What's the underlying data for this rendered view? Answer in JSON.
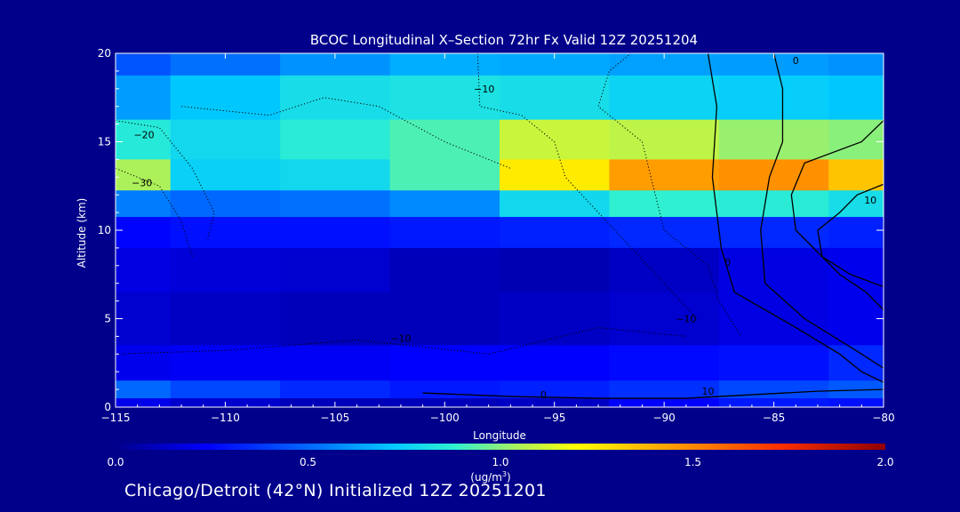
{
  "chart_data": {
    "type": "heatmap",
    "title": "BCOC Longitudinal X–Section 72hr  Fx Valid 12Z 20251204",
    "xlabel": "Longitude",
    "ylabel": "Altitude (km)",
    "xlim": [
      -115,
      -80
    ],
    "ylim": [
      0,
      20
    ],
    "x_ticks": [
      -115,
      -110,
      -105,
      -100,
      -95,
      -90,
      -85,
      -80
    ],
    "x_tick_labels": [
      "−115",
      "−110",
      "−105",
      "−100",
      "−95",
      "−90",
      "−85",
      "−80"
    ],
    "y_ticks": [
      0,
      5,
      10,
      15,
      20
    ],
    "y_tick_labels": [
      "0",
      "5",
      "10",
      "15",
      "20"
    ],
    "colorbar": {
      "min": 0.0,
      "max": 2.0,
      "ticks": [
        0.0,
        0.5,
        1.0,
        1.5,
        2.0
      ],
      "tick_labels": [
        "0.0",
        "0.5",
        "1.0",
        "1.5",
        "2.0"
      ],
      "label_line1": "(ug/m",
      "label_sup": "3",
      "label_line2": ")"
    },
    "bands": [
      {
        "altitude": 20.0,
        "values": [
          0.45,
          0.52,
          0.6,
          0.66,
          0.65,
          0.63,
          0.62,
          0.6
        ]
      },
      {
        "altitude": 17.5,
        "values": [
          0.62,
          0.72,
          0.8,
          0.82,
          0.8,
          0.76,
          0.74,
          0.72
        ]
      },
      {
        "altitude": 15.0,
        "values": [
          0.85,
          0.78,
          0.86,
          0.92,
          1.1,
          1.08,
          1.02,
          1.0
        ]
      },
      {
        "altitude": 13.0,
        "values": [
          1.05,
          0.75,
          0.78,
          0.92,
          1.25,
          1.45,
          1.48,
          1.35
        ]
      },
      {
        "altitude": 11.5,
        "values": [
          0.55,
          0.5,
          0.52,
          0.58,
          0.78,
          0.88,
          0.86,
          0.8
        ]
      },
      {
        "altitude": 10.0,
        "values": [
          0.25,
          0.28,
          0.28,
          0.3,
          0.32,
          0.34,
          0.34,
          0.32
        ]
      },
      {
        "altitude": 8.0,
        "values": [
          0.18,
          0.16,
          0.14,
          0.1,
          0.08,
          0.12,
          0.18,
          0.2
        ]
      },
      {
        "altitude": 5.0,
        "values": [
          0.14,
          0.12,
          0.1,
          0.1,
          0.12,
          0.14,
          0.18,
          0.2
        ]
      },
      {
        "altitude": 2.0,
        "values": [
          0.2,
          0.22,
          0.22,
          0.24,
          0.24,
          0.26,
          0.28,
          0.34
        ]
      },
      {
        "altitude": 1.0,
        "values": [
          0.5,
          0.42,
          0.34,
          0.3,
          0.32,
          0.36,
          0.42,
          0.46
        ]
      },
      {
        "altitude": 0.0,
        "values": [
          0.2,
          0.14,
          0.1,
          0.1,
          0.12,
          0.24,
          0.3,
          0.28
        ]
      }
    ],
    "band_longitudes": [
      -115,
      -110,
      -105,
      -100,
      -95,
      -90,
      -85,
      -80
    ],
    "contours": [
      {
        "level": 0,
        "style": "solid",
        "points": [
          [
            -85.0,
            20.0
          ],
          [
            -84.6,
            18.0
          ],
          [
            -84.6,
            15.0
          ],
          [
            -85.2,
            13.0
          ],
          [
            -85.6,
            10.0
          ],
          [
            -85.4,
            7.0
          ],
          [
            -83.6,
            5.0
          ],
          [
            -81.0,
            3.0
          ],
          [
            -80.0,
            2.2
          ]
        ]
      },
      {
        "level": 0,
        "style": "solid",
        "points": [
          [
            -80.0,
            16.2
          ],
          [
            -81.0,
            15.0
          ],
          [
            -83.6,
            13.8
          ],
          [
            -84.2,
            12.0
          ],
          [
            -84.0,
            10.0
          ],
          [
            -82.0,
            7.5
          ],
          [
            -80.8,
            6.5
          ],
          [
            -80.0,
            5.5
          ]
        ]
      },
      {
        "level": 10,
        "style": "solid",
        "points": [
          [
            -80.0,
            12.6
          ],
          [
            -81.2,
            12.0
          ],
          [
            -82.0,
            11.0
          ],
          [
            -83.0,
            10.0
          ],
          [
            -82.8,
            8.5
          ],
          [
            -81.5,
            7.5
          ],
          [
            -80.0,
            6.8
          ]
        ]
      },
      {
        "level": 0,
        "style": "solid",
        "points": [
          [
            -88.0,
            20.0
          ],
          [
            -87.6,
            17.0
          ],
          [
            -87.8,
            13.0
          ],
          [
            -87.4,
            9.0
          ],
          [
            -86.8,
            6.5
          ],
          [
            -84.0,
            4.5
          ],
          [
            -82.0,
            3.0
          ],
          [
            -81.0,
            2.0
          ],
          [
            -80.0,
            1.4
          ]
        ]
      },
      {
        "level": -10,
        "style": "dotted",
        "points": [
          [
            -98.5,
            20.0
          ],
          [
            -98.4,
            17.0
          ],
          [
            -96.5,
            16.5
          ],
          [
            -95.0,
            15.0
          ],
          [
            -94.5,
            13.0
          ],
          [
            -93.0,
            11.0
          ],
          [
            -91.5,
            9.0
          ],
          [
            -90.0,
            7.0
          ],
          [
            -88.5,
            5.0
          ]
        ]
      },
      {
        "level": -10,
        "style": "dotted",
        "points": [
          [
            -91.5,
            20.0
          ],
          [
            -92.5,
            19.0
          ],
          [
            -93.0,
            17.0
          ],
          [
            -91.0,
            15.0
          ],
          [
            -90.6,
            13.0
          ],
          [
            -90.0,
            10.0
          ],
          [
            -88.0,
            8.0
          ],
          [
            -87.5,
            6.0
          ],
          [
            -86.5,
            4.0
          ]
        ]
      },
      {
        "level": -20,
        "style": "dotted",
        "points": [
          [
            -115.0,
            16.2
          ],
          [
            -113.0,
            15.8
          ],
          [
            -111.5,
            13.5
          ],
          [
            -110.5,
            11.0
          ],
          [
            -110.8,
            9.5
          ]
        ]
      },
      {
        "level": -20,
        "style": "dotted",
        "points": [
          [
            -112.0,
            17.0
          ],
          [
            -108.0,
            16.5
          ],
          [
            -105.5,
            17.5
          ],
          [
            -103.0,
            17.0
          ],
          [
            -100.0,
            15.0
          ],
          [
            -97.0,
            13.5
          ]
        ]
      },
      {
        "level": -30,
        "style": "dotted",
        "points": [
          [
            -115.0,
            13.5
          ],
          [
            -113.0,
            12.5
          ],
          [
            -112.0,
            10.5
          ],
          [
            -111.5,
            8.5
          ]
        ]
      },
      {
        "level": -10,
        "style": "dotted",
        "points": [
          [
            -115.0,
            3.0
          ],
          [
            -110.0,
            3.2
          ],
          [
            -104.0,
            3.8
          ],
          [
            -98.0,
            3.0
          ],
          [
            -93.0,
            4.5
          ],
          [
            -89.0,
            4.0
          ]
        ]
      },
      {
        "level": 0,
        "style": "solid",
        "points": [
          [
            -101.0,
            0.8
          ],
          [
            -97.0,
            0.6
          ],
          [
            -93.0,
            0.5
          ],
          [
            -89.0,
            0.5
          ],
          [
            -86.0,
            0.7
          ],
          [
            -83.0,
            0.9
          ],
          [
            -80.0,
            1.0
          ]
        ]
      }
    ],
    "contour_labels": [
      {
        "text": "0",
        "x": -84.0,
        "y": 19.4
      },
      {
        "text": "−10",
        "x": -98.2,
        "y": 17.8
      },
      {
        "text": "−20",
        "x": -113.7,
        "y": 15.2
      },
      {
        "text": "−30",
        "x": -113.8,
        "y": 12.5
      },
      {
        "text": "10",
        "x": -80.6,
        "y": 11.5
      },
      {
        "text": "0",
        "x": -87.1,
        "y": 8.0
      },
      {
        "text": "−10",
        "x": -89.0,
        "y": 4.8
      },
      {
        "text": "−10",
        "x": -102.0,
        "y": 3.7
      },
      {
        "text": "0",
        "x": -95.5,
        "y": 0.5
      },
      {
        "text": "10",
        "x": -88.0,
        "y": 0.7
      }
    ]
  },
  "footer": {
    "subtitle": "Chicago/Detroit (42°N) Initialized 12Z 20251201"
  },
  "colors": {
    "background": "#00008b",
    "axis": "#ffffff",
    "contour": "#000000"
  }
}
